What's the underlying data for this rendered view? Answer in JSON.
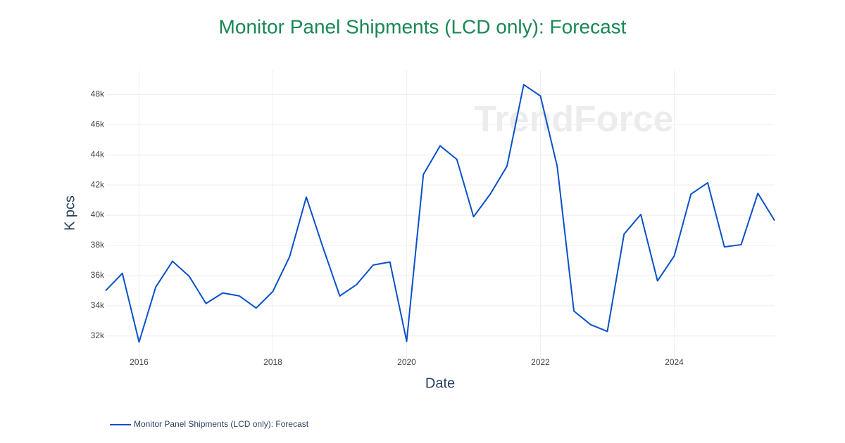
{
  "chart_data": {
    "type": "line",
    "title": "Monitor Panel Shipments (LCD only): Forecast",
    "x_label": "Date",
    "y_label": "K pcs",
    "watermark": "TrendForce",
    "x": [
      2015.5,
      2015.75,
      2016,
      2016.25,
      2016.5,
      2016.75,
      2017,
      2017.25,
      2017.5,
      2017.75,
      2018,
      2018.25,
      2018.5,
      2018.75,
      2019,
      2019.25,
      2019.5,
      2019.75,
      2020,
      2020.25,
      2020.5,
      2020.75,
      2021,
      2021.25,
      2021.5,
      2021.75,
      2022,
      2022.25,
      2022.5,
      2022.75,
      2023,
      2023.25,
      2023.5,
      2023.75,
      2024,
      2024.25,
      2024.5,
      2024.75,
      2025,
      2025.25,
      2025.5
    ],
    "series": [
      {
        "name": "Monitor Panel Shipments (LCD only): Forecast",
        "color": "#0a50c8",
        "values": [
          35000,
          36150,
          31600,
          35250,
          36950,
          35950,
          34150,
          34850,
          34650,
          33850,
          34950,
          37250,
          41200,
          37850,
          34650,
          35400,
          36700,
          36900,
          31650,
          42700,
          44600,
          43700,
          39900,
          41400,
          43250,
          48650,
          47900,
          43250,
          33650,
          32750,
          32300,
          38750,
          40050,
          35650,
          37300,
          41400,
          42150,
          37900,
          38050,
          41450,
          39650
        ]
      }
    ],
    "xlim": [
      2015.5,
      2025.5
    ],
    "xticks": [
      2016,
      2018,
      2020,
      2022,
      2024
    ],
    "ylim": [
      30500,
      49600
    ],
    "yticks": [
      {
        "value": 32000,
        "label": "32k"
      },
      {
        "value": 34000,
        "label": "34k"
      },
      {
        "value": 36000,
        "label": "36k"
      },
      {
        "value": 38000,
        "label": "38k"
      },
      {
        "value": 40000,
        "label": "40k"
      },
      {
        "value": 42000,
        "label": "42k"
      },
      {
        "value": 44000,
        "label": "44k"
      },
      {
        "value": 46000,
        "label": "46k"
      },
      {
        "value": 48000,
        "label": "48k"
      }
    ],
    "grid": true,
    "legend": "bottom-left"
  }
}
